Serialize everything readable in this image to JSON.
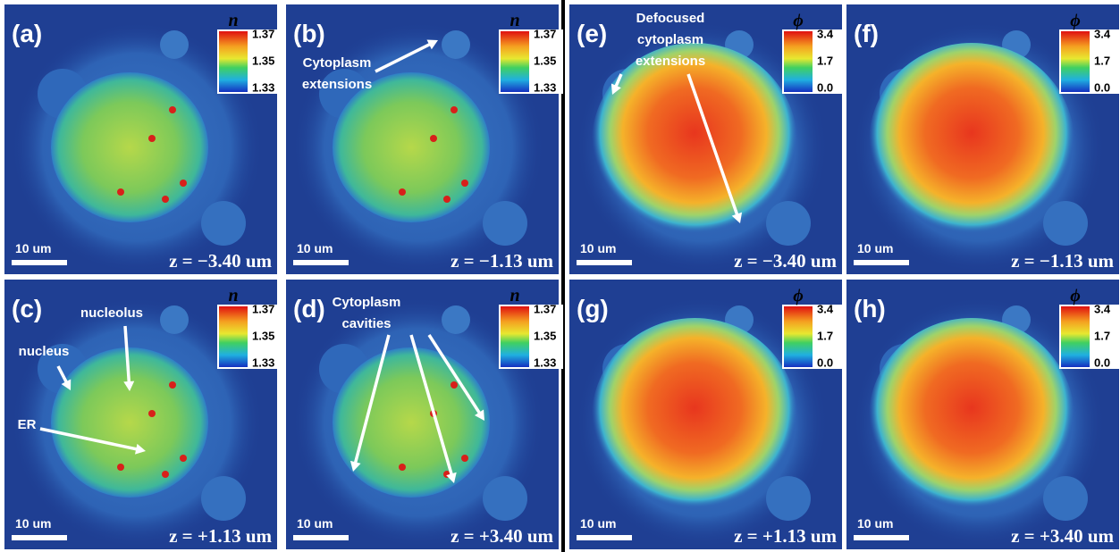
{
  "panels": [
    {
      "label": "(a)",
      "colorbar": {
        "symbol": "n",
        "ticks": [
          "1.37",
          "1.35",
          "1.33"
        ]
      },
      "scale_bar": "10 um",
      "z": "z = −3.40 um",
      "annotations": []
    },
    {
      "label": "(b)",
      "colorbar": {
        "symbol": "n",
        "ticks": [
          "1.37",
          "1.35",
          "1.33"
        ]
      },
      "scale_bar": "10 um",
      "z": "z = −1.13 um",
      "annotations": [
        {
          "lines": [
            "Cytoplasm",
            "extensions"
          ]
        }
      ]
    },
    {
      "label": "(c)",
      "colorbar": {
        "symbol": "n",
        "ticks": [
          "1.37",
          "1.35",
          "1.33"
        ]
      },
      "scale_bar": "10 um",
      "z": "z = +1.13 um",
      "annotations": [
        {
          "lines": [
            "nucleolus"
          ]
        },
        {
          "lines": [
            "nucleus"
          ]
        },
        {
          "lines": [
            "ER"
          ]
        }
      ]
    },
    {
      "label": "(d)",
      "colorbar": {
        "symbol": "n",
        "ticks": [
          "1.37",
          "1.35",
          "1.33"
        ]
      },
      "scale_bar": "10 um",
      "z": "z = +3.40 um",
      "annotations": [
        {
          "lines": [
            "Cytoplasm",
            "cavities"
          ]
        }
      ]
    },
    {
      "label": "(e)",
      "colorbar": {
        "symbol": "ϕ",
        "ticks": [
          "3.4",
          "1.7",
          "0.0"
        ]
      },
      "scale_bar": "10 um",
      "z": "z = −3.40 um",
      "annotations": [
        {
          "lines": [
            "Defocused",
            "cytoplasm",
            "extensions"
          ]
        }
      ]
    },
    {
      "label": "(f)",
      "colorbar": {
        "symbol": "ϕ",
        "ticks": [
          "3.4",
          "1.7",
          "0.0"
        ]
      },
      "scale_bar": "10 um",
      "z": "z = −1.13 um",
      "annotations": []
    },
    {
      "label": "(g)",
      "colorbar": {
        "symbol": "ϕ",
        "ticks": [
          "3.4",
          "1.7",
          "0.0"
        ]
      },
      "scale_bar": "10 um",
      "z": "z = +1.13 um",
      "annotations": []
    },
    {
      "label": "(h)",
      "colorbar": {
        "symbol": "ϕ",
        "ticks": [
          "3.4",
          "1.7",
          "0.0"
        ]
      },
      "scale_bar": "10 um",
      "z": "z = +3.40 um",
      "annotations": []
    }
  ]
}
